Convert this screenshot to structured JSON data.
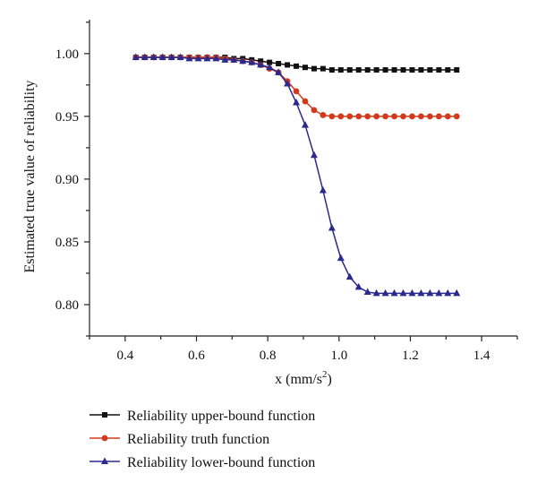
{
  "chart_data": {
    "type": "line",
    "xlabel": "x (mm/s",
    "xlabel_sup": "2",
    "xlabel_close": ")",
    "ylabel": "Estimated true value of reliability",
    "xlim": [
      0.3,
      1.5
    ],
    "ylim": [
      0.775,
      1.027
    ],
    "x_ticks": [
      0.4,
      0.6,
      0.8,
      1.0,
      1.2,
      1.4
    ],
    "x_tick_labels": [
      "0.4",
      "0.6",
      "0.8",
      "1.0",
      "1.2",
      "1.4"
    ],
    "y_ticks": [
      0.8,
      0.85,
      0.9,
      0.95,
      1.0
    ],
    "y_tick_labels": [
      "0.80",
      "0.85",
      "0.90",
      "0.95",
      "1.00"
    ],
    "x": [
      0.43,
      0.455,
      0.48,
      0.505,
      0.53,
      0.555,
      0.58,
      0.605,
      0.63,
      0.655,
      0.68,
      0.705,
      0.73,
      0.755,
      0.78,
      0.805,
      0.83,
      0.855,
      0.88,
      0.905,
      0.93,
      0.955,
      0.98,
      1.005,
      1.03,
      1.055,
      1.08,
      1.105,
      1.13,
      1.155,
      1.18,
      1.205,
      1.23,
      1.255,
      1.28,
      1.305,
      1.33
    ],
    "series": [
      {
        "name": "Reliability upper-bound function",
        "color": "#111111",
        "marker": "square",
        "values": [
          0.997,
          0.997,
          0.997,
          0.997,
          0.997,
          0.997,
          0.997,
          0.997,
          0.997,
          0.997,
          0.997,
          0.996,
          0.996,
          0.995,
          0.994,
          0.993,
          0.992,
          0.991,
          0.99,
          0.989,
          0.988,
          0.988,
          0.987,
          0.987,
          0.987,
          0.987,
          0.987,
          0.987,
          0.987,
          0.987,
          0.987,
          0.987,
          0.987,
          0.987,
          0.987,
          0.987,
          0.987
        ]
      },
      {
        "name": "Reliability truth function",
        "color": "#d23a1e",
        "marker": "circle",
        "values": [
          0.997,
          0.997,
          0.997,
          0.997,
          0.997,
          0.997,
          0.997,
          0.997,
          0.997,
          0.997,
          0.996,
          0.995,
          0.994,
          0.993,
          0.991,
          0.988,
          0.985,
          0.978,
          0.97,
          0.962,
          0.955,
          0.951,
          0.95,
          0.95,
          0.95,
          0.95,
          0.95,
          0.95,
          0.95,
          0.95,
          0.95,
          0.95,
          0.95,
          0.95,
          0.95,
          0.95,
          0.95
        ]
      },
      {
        "name": "Reliability lower-bound function",
        "color": "#2b2a8c",
        "marker": "triangle",
        "values": [
          0.997,
          0.997,
          0.997,
          0.997,
          0.997,
          0.997,
          0.996,
          0.996,
          0.996,
          0.996,
          0.995,
          0.995,
          0.994,
          0.993,
          0.991,
          0.989,
          0.985,
          0.976,
          0.961,
          0.943,
          0.919,
          0.891,
          0.861,
          0.837,
          0.822,
          0.814,
          0.81,
          0.809,
          0.809,
          0.809,
          0.809,
          0.809,
          0.809,
          0.809,
          0.809,
          0.809,
          0.809
        ]
      }
    ],
    "grid": false,
    "legend_position": "bottom"
  }
}
